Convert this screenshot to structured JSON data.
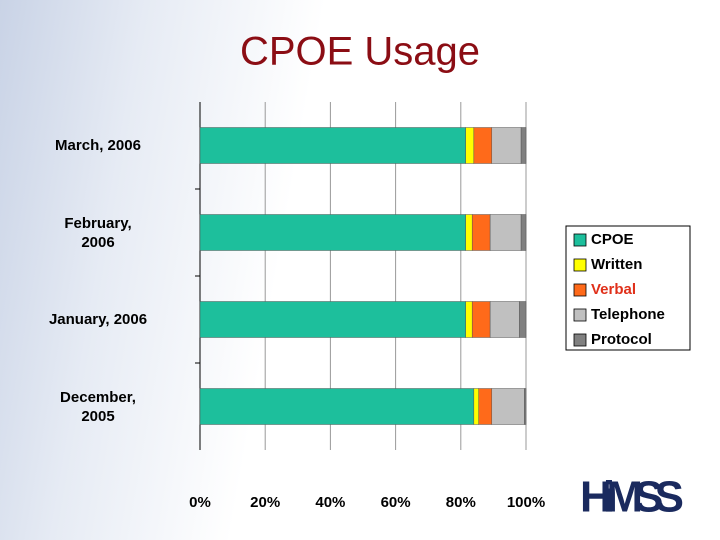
{
  "chart_data": {
    "type": "stacked-barh",
    "title": "CPOE Usage",
    "categories": [
      "March, 2006",
      "February,\n2006",
      "January, 2006",
      "December,\n2005"
    ],
    "series": [
      {
        "name": "CPOE",
        "color": "#1dbf9c",
        "label_color": "#000000",
        "values": [
          81.5,
          81.5,
          81.5,
          84
        ]
      },
      {
        "name": "Written",
        "color": "#ffff00",
        "label_color": "#000000",
        "values": [
          2.5,
          2,
          2,
          1.5
        ]
      },
      {
        "name": "Verbal",
        "color": "#ff6a1a",
        "label_color": "#e0301a",
        "values": [
          5.5,
          5.5,
          5.5,
          4
        ]
      },
      {
        "name": "Telephone",
        "color": "#c0c0c0",
        "label_color": "#000000",
        "values": [
          9,
          9.5,
          9,
          10
        ]
      },
      {
        "name": "Protocol",
        "color": "#808080",
        "label_color": "#000000",
        "values": [
          1.5,
          1.5,
          2,
          0.5
        ]
      }
    ],
    "xlim": [
      0,
      100
    ],
    "xticks": [
      {
        "value": 0,
        "label": "0%"
      },
      {
        "value": 20,
        "label": "20%"
      },
      {
        "value": 40,
        "label": "40%"
      },
      {
        "value": 60,
        "label": "60%"
      },
      {
        "value": 80,
        "label": "80%"
      },
      {
        "value": 100,
        "label": "100%"
      }
    ],
    "grid": true,
    "legend": "right",
    "logo": "HiMSS"
  }
}
